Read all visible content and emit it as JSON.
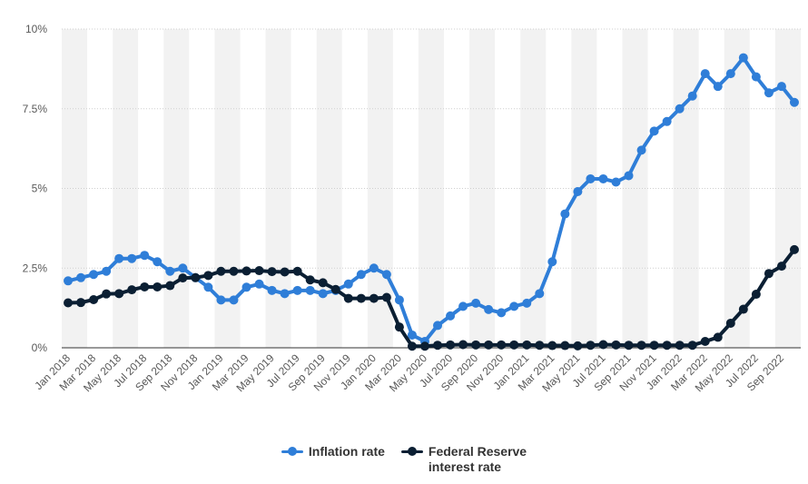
{
  "chart_data": {
    "type": "line",
    "title": "",
    "xlabel": "",
    "ylabel": "",
    "ylim": [
      0,
      10
    ],
    "yticks": [
      "0%",
      "2.5%",
      "5%",
      "7.5%",
      "10%"
    ],
    "ytick_values": [
      0,
      2.5,
      5,
      7.5,
      10
    ],
    "grid": true,
    "legend_position": "bottom",
    "x": [
      "Jan 2018",
      "Feb 2018",
      "Mar 2018",
      "Apr 2018",
      "May 2018",
      "Jun 2018",
      "Jul 2018",
      "Aug 2018",
      "Sep 2018",
      "Oct 2018",
      "Nov 2018",
      "Dec 2018",
      "Jan 2019",
      "Feb 2019",
      "Mar 2019",
      "Apr 2019",
      "May 2019",
      "Jun 2019",
      "Jul 2019",
      "Aug 2019",
      "Sep 2019",
      "Oct 2019",
      "Nov 2019",
      "Dec 2019",
      "Jan 2020",
      "Feb 2020",
      "Mar 2020",
      "Apr 2020",
      "May 2020",
      "Jun 2020",
      "Jul 2020",
      "Aug 2020",
      "Sep 2020",
      "Oct 2020",
      "Nov 2020",
      "Dec 2020",
      "Jan 2021",
      "Feb 2021",
      "Mar 2021",
      "Apr 2021",
      "May 2021",
      "Jun 2021",
      "Jul 2021",
      "Aug 2021",
      "Sep 2021",
      "Oct 2021",
      "Nov 2021",
      "Dec 2021",
      "Jan 2022",
      "Feb 2022",
      "Mar 2022",
      "Apr 2022",
      "May 2022",
      "Jun 2022",
      "Jul 2022",
      "Aug 2022",
      "Sep 2022",
      "Oct 2022"
    ],
    "xtick_labels": [
      "Jan 2018",
      "Mar 2018",
      "May 2018",
      "Jul 2018",
      "Sep 2018",
      "Nov 2018",
      "Jan 2019",
      "Mar 2019",
      "May 2019",
      "Jul 2019",
      "Sep 2019",
      "Nov 2019",
      "Jan 2020",
      "Mar 2020",
      "May 2020",
      "Jul 2020",
      "Sep 2020",
      "Nov 2020",
      "Jan 2021",
      "Mar 2021",
      "May 2021",
      "Jul 2021",
      "Sep 2021",
      "Nov 2021",
      "Jan 2022",
      "Mar 2022",
      "May 2022",
      "Jul 2022",
      "Sep 2022"
    ],
    "series": [
      {
        "name": "Inflation rate",
        "color": "#2f7ed8",
        "values": [
          2.1,
          2.2,
          2.3,
          2.4,
          2.8,
          2.8,
          2.9,
          2.7,
          2.4,
          2.5,
          2.2,
          1.9,
          1.5,
          1.5,
          1.9,
          2.0,
          1.8,
          1.7,
          1.8,
          1.8,
          1.7,
          1.8,
          2.0,
          2.3,
          2.5,
          2.3,
          1.5,
          0.4,
          0.2,
          0.7,
          1.0,
          1.3,
          1.4,
          1.2,
          1.1,
          1.3,
          1.4,
          1.7,
          2.7,
          4.2,
          4.9,
          5.3,
          5.3,
          5.2,
          5.4,
          6.2,
          6.8,
          7.1,
          7.5,
          7.9,
          8.6,
          8.2,
          8.6,
          9.1,
          8.5,
          8.0,
          8.2,
          7.7
        ]
      },
      {
        "name": "Federal Reserve\ninterest rate",
        "color": "#0b1f33",
        "values": [
          1.41,
          1.42,
          1.51,
          1.69,
          1.7,
          1.82,
          1.91,
          1.91,
          1.95,
          2.19,
          2.2,
          2.27,
          2.4,
          2.4,
          2.41,
          2.42,
          2.39,
          2.38,
          2.4,
          2.13,
          2.04,
          1.83,
          1.55,
          1.55,
          1.55,
          1.58,
          0.65,
          0.05,
          0.05,
          0.08,
          0.09,
          0.1,
          0.09,
          0.09,
          0.09,
          0.09,
          0.09,
          0.08,
          0.07,
          0.07,
          0.06,
          0.08,
          0.1,
          0.09,
          0.08,
          0.08,
          0.08,
          0.08,
          0.08,
          0.08,
          0.2,
          0.33,
          0.77,
          1.21,
          1.68,
          2.33,
          2.56,
          3.08
        ]
      }
    ]
  }
}
